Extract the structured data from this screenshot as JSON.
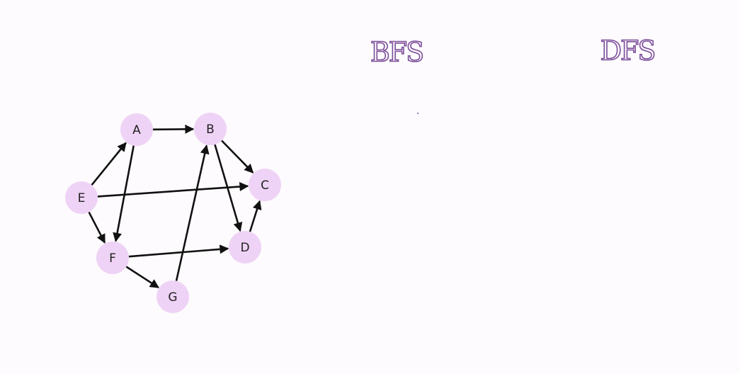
{
  "headings": {
    "bfs": "BFS",
    "dfs": "DFS"
  },
  "nodes": [
    {
      "label": "A"
    },
    {
      "label": "B"
    },
    {
      "label": "C"
    },
    {
      "label": "D"
    },
    {
      "label": "E"
    },
    {
      "label": "F"
    },
    {
      "label": "G"
    }
  ]
}
